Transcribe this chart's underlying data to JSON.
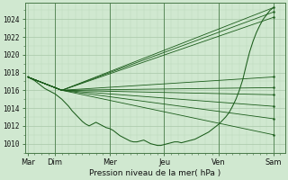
{
  "bg_color": "#d0e8d0",
  "grid_color_major": "#a8c8a8",
  "grid_color_minor": "#b8d8b8",
  "line_color": "#1a5c1a",
  "xlabel": "Pression niveau de la mer( hPa )",
  "xtick_labels": [
    "Mar",
    "Dim",
    "Mer",
    "Jeu",
    "Ven",
    "Sam"
  ],
  "xtick_positions": [
    0,
    24,
    72,
    120,
    168,
    216
  ],
  "ytick_values": [
    1010,
    1012,
    1014,
    1016,
    1018,
    1020,
    1022,
    1024
  ],
  "xlim": [
    -2,
    226
  ],
  "ylim": [
    1009.0,
    1025.8
  ],
  "pinch_x": 30,
  "pinch_y": 1016.0,
  "fan_end_x": 216,
  "fan_ends": [
    1025.3,
    1024.8,
    1024.2,
    1017.5,
    1016.3,
    1015.5,
    1014.2,
    1012.8,
    1011.0
  ],
  "actual_t": [
    0,
    3,
    6,
    9,
    12,
    15,
    18,
    21,
    24,
    27,
    30,
    33,
    36,
    39,
    42,
    45,
    48,
    51,
    54,
    57,
    60,
    63,
    66,
    69,
    72,
    75,
    78,
    81,
    84,
    87,
    90,
    93,
    96,
    99,
    102,
    105,
    108,
    111,
    114,
    117,
    120,
    123,
    126,
    129,
    132,
    135,
    138,
    141,
    144,
    147,
    150,
    153,
    156,
    159,
    162,
    165,
    168,
    171,
    174,
    177,
    180,
    183,
    186,
    189,
    192,
    195,
    198,
    201,
    204,
    207,
    210,
    213,
    216
  ],
  "actual_y": [
    1017.5,
    1017.3,
    1017.1,
    1016.8,
    1016.5,
    1016.2,
    1016.0,
    1015.8,
    1015.6,
    1015.3,
    1015.0,
    1014.6,
    1014.2,
    1013.7,
    1013.3,
    1012.9,
    1012.5,
    1012.2,
    1012.0,
    1012.2,
    1012.4,
    1012.2,
    1012.0,
    1011.8,
    1011.7,
    1011.5,
    1011.2,
    1010.9,
    1010.7,
    1010.5,
    1010.3,
    1010.2,
    1010.2,
    1010.3,
    1010.4,
    1010.2,
    1010.0,
    1009.9,
    1009.8,
    1009.8,
    1009.9,
    1010.0,
    1010.1,
    1010.2,
    1010.2,
    1010.1,
    1010.2,
    1010.3,
    1010.4,
    1010.5,
    1010.7,
    1010.9,
    1011.1,
    1011.3,
    1011.6,
    1011.9,
    1012.2,
    1012.6,
    1013.0,
    1013.5,
    1014.2,
    1015.0,
    1016.0,
    1017.2,
    1018.8,
    1020.3,
    1021.5,
    1022.5,
    1023.3,
    1024.0,
    1024.5,
    1025.0,
    1025.3
  ]
}
